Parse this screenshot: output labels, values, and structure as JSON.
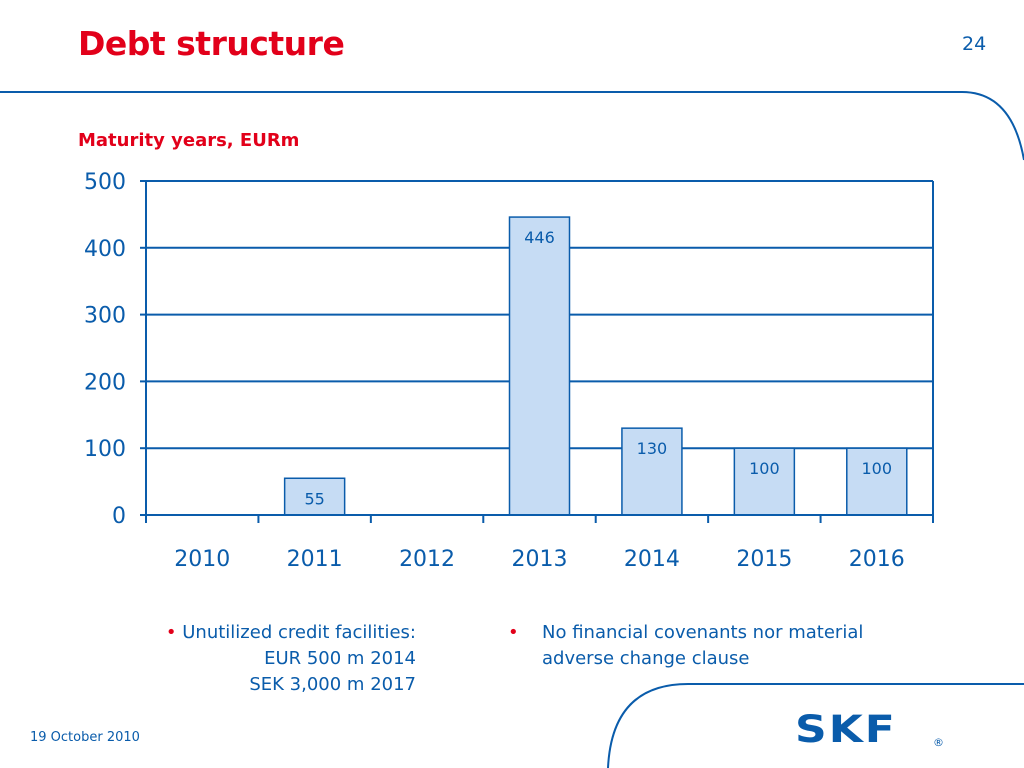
{
  "slide": {
    "title": "Debt structure",
    "page_number": "24",
    "footer_date": "19 October 2010",
    "logo_text": "SKF",
    "logo_mark": "®"
  },
  "bullets": {
    "left": {
      "marker": "•",
      "lines": [
        "Unutilized credit facilities:",
        "EUR 500 m 2014",
        "SEK 3,000 m 2017"
      ]
    },
    "right": {
      "marker": "•",
      "lines": [
        "No financial covenants nor material",
        "adverse change clause"
      ]
    }
  },
  "colors": {
    "title_red": "#e2001a",
    "brand_blue": "#0a5cab",
    "bar_fill": "#c6dcf4",
    "bar_stroke": "#0a5cab"
  },
  "chart_data": {
    "type": "bar",
    "title": "Maturity years, EURm",
    "categories": [
      "2010",
      "2011",
      "2012",
      "2013",
      "2014",
      "2015",
      "2016"
    ],
    "values": [
      null,
      55,
      null,
      446,
      130,
      100,
      100
    ],
    "data_labels": [
      "",
      "55",
      "",
      "446",
      "130",
      "100",
      "100"
    ],
    "ylim": [
      0,
      500
    ],
    "yticks": [
      0,
      100,
      200,
      300,
      400,
      500
    ],
    "grid": true,
    "legend": "none"
  }
}
